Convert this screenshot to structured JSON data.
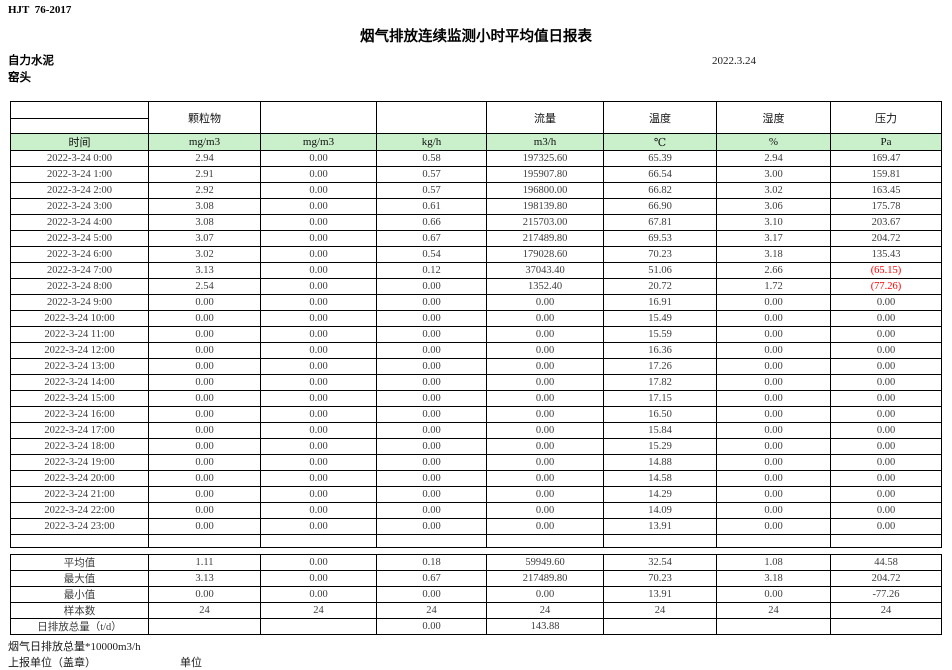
{
  "page": {
    "standard_code": "HJT  76-2017",
    "title": "烟气排放连续监测小时平均值日报表",
    "company": "自力水泥",
    "station": "窑头",
    "date": "2022.3.24"
  },
  "colors": {
    "header_fill": "#C9F0CB",
    "negative_value": "#FF0000",
    "border": "#000000"
  },
  "table": {
    "groups": [
      "",
      "颗粒物",
      "",
      "",
      "流量",
      "温度",
      "湿度",
      "压力"
    ],
    "units": [
      "时间",
      "mg/m3",
      "mg/m3",
      "kg/h",
      "m3/h",
      "℃",
      "%",
      "Pa"
    ],
    "rows": [
      {
        "time": "2022-3-24 0:00",
        "values": [
          "2.94",
          "0.00",
          "0.58",
          "197325.60",
          "65.39",
          "2.94",
          "169.47"
        ]
      },
      {
        "time": "2022-3-24 1:00",
        "values": [
          "2.91",
          "0.00",
          "0.57",
          "195907.80",
          "66.54",
          "3.00",
          "159.81"
        ]
      },
      {
        "time": "2022-3-24 2:00",
        "values": [
          "2.92",
          "0.00",
          "0.57",
          "196800.00",
          "66.82",
          "3.02",
          "163.45"
        ]
      },
      {
        "time": "2022-3-24 3:00",
        "values": [
          "3.08",
          "0.00",
          "0.61",
          "198139.80",
          "66.90",
          "3.06",
          "175.78"
        ]
      },
      {
        "time": "2022-3-24 4:00",
        "values": [
          "3.08",
          "0.00",
          "0.66",
          "215703.00",
          "67.81",
          "3.10",
          "203.67"
        ]
      },
      {
        "time": "2022-3-24 5:00",
        "values": [
          "3.07",
          "0.00",
          "0.67",
          "217489.80",
          "69.53",
          "3.17",
          "204.72"
        ]
      },
      {
        "time": "2022-3-24 6:00",
        "values": [
          "3.02",
          "0.00",
          "0.54",
          "179028.60",
          "70.23",
          "3.18",
          "135.43"
        ]
      },
      {
        "time": "2022-3-24 7:00",
        "values": [
          "3.13",
          "0.00",
          "0.12",
          "37043.40",
          "51.06",
          "2.66",
          "(65.15)"
        ]
      },
      {
        "time": "2022-3-24 8:00",
        "values": [
          "2.54",
          "0.00",
          "0.00",
          "1352.40",
          "20.72",
          "1.72",
          "(77.26)"
        ]
      },
      {
        "time": "2022-3-24 9:00",
        "values": [
          "0.00",
          "0.00",
          "0.00",
          "0.00",
          "16.91",
          "0.00",
          "0.00"
        ]
      },
      {
        "time": "2022-3-24 10:00",
        "values": [
          "0.00",
          "0.00",
          "0.00",
          "0.00",
          "15.49",
          "0.00",
          "0.00"
        ]
      },
      {
        "time": "2022-3-24 11:00",
        "values": [
          "0.00",
          "0.00",
          "0.00",
          "0.00",
          "15.59",
          "0.00",
          "0.00"
        ]
      },
      {
        "time": "2022-3-24 12:00",
        "values": [
          "0.00",
          "0.00",
          "0.00",
          "0.00",
          "16.36",
          "0.00",
          "0.00"
        ]
      },
      {
        "time": "2022-3-24 13:00",
        "values": [
          "0.00",
          "0.00",
          "0.00",
          "0.00",
          "17.26",
          "0.00",
          "0.00"
        ]
      },
      {
        "time": "2022-3-24 14:00",
        "values": [
          "0.00",
          "0.00",
          "0.00",
          "0.00",
          "17.82",
          "0.00",
          "0.00"
        ]
      },
      {
        "time": "2022-3-24 15:00",
        "values": [
          "0.00",
          "0.00",
          "0.00",
          "0.00",
          "17.15",
          "0.00",
          "0.00"
        ]
      },
      {
        "time": "2022-3-24 16:00",
        "values": [
          "0.00",
          "0.00",
          "0.00",
          "0.00",
          "16.50",
          "0.00",
          "0.00"
        ]
      },
      {
        "time": "2022-3-24 17:00",
        "values": [
          "0.00",
          "0.00",
          "0.00",
          "0.00",
          "15.84",
          "0.00",
          "0.00"
        ]
      },
      {
        "time": "2022-3-24 18:00",
        "values": [
          "0.00",
          "0.00",
          "0.00",
          "0.00",
          "15.29",
          "0.00",
          "0.00"
        ]
      },
      {
        "time": "2022-3-24 19:00",
        "values": [
          "0.00",
          "0.00",
          "0.00",
          "0.00",
          "14.88",
          "0.00",
          "0.00"
        ]
      },
      {
        "time": "2022-3-24 20:00",
        "values": [
          "0.00",
          "0.00",
          "0.00",
          "0.00",
          "14.58",
          "0.00",
          "0.00"
        ]
      },
      {
        "time": "2022-3-24 21:00",
        "values": [
          "0.00",
          "0.00",
          "0.00",
          "0.00",
          "14.29",
          "0.00",
          "0.00"
        ]
      },
      {
        "time": "2022-3-24 22:00",
        "values": [
          "0.00",
          "0.00",
          "0.00",
          "0.00",
          "14.09",
          "0.00",
          "0.00"
        ]
      },
      {
        "time": "2022-3-24 23:00",
        "values": [
          "0.00",
          "0.00",
          "0.00",
          "0.00",
          "13.91",
          "0.00",
          "0.00"
        ]
      }
    ],
    "summary": [
      {
        "label": "平均值",
        "values": [
          "1.11",
          "0.00",
          "0.18",
          "59949.60",
          "32.54",
          "1.08",
          "44.58"
        ]
      },
      {
        "label": "最大值",
        "values": [
          "3.13",
          "0.00",
          "0.67",
          "217489.80",
          "70.23",
          "3.18",
          "204.72"
        ]
      },
      {
        "label": "最小值",
        "values": [
          "0.00",
          "0.00",
          "0.00",
          "0.00",
          "13.91",
          "0.00",
          "-77.26"
        ]
      },
      {
        "label": "样本数",
        "values": [
          "24",
          "24",
          "24",
          "24",
          "24",
          "24",
          "24"
        ]
      },
      {
        "label": "日排放总量（t/d）",
        "values": [
          "",
          "",
          "0.00",
          "143.88",
          "",
          "",
          ""
        ]
      }
    ]
  },
  "footer": {
    "total_note": "烟气日排放总量*10000m3/h",
    "report_unit_label": "上报单位（盖章）",
    "unit_label": "单位"
  }
}
